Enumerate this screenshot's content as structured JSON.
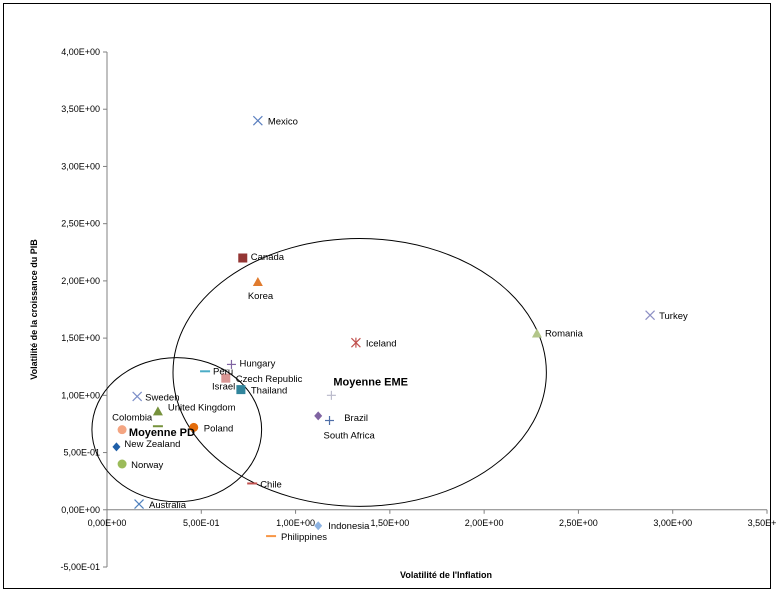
{
  "chart_data": {
    "type": "scatter",
    "title": "",
    "xlabel": "Volatilité de l'Inflation",
    "ylabel": "Volatilité de la croissance du PIB",
    "xlim": [
      0,
      3.5
    ],
    "ylim": [
      -0.5,
      4.0
    ],
    "x_ticks": [
      0,
      0.5,
      1.0,
      1.5,
      2.0,
      2.5,
      3.0,
      3.5
    ],
    "x_tick_labels": [
      "0,00E+00",
      "5,00E-01",
      "1,00E+00",
      "1,50E+00",
      "2,00E+00",
      "2,50E+00",
      "3,00E+00",
      "3,50E+00"
    ],
    "y_ticks": [
      -0.5,
      0,
      0.5,
      1.0,
      1.5,
      2.0,
      2.5,
      3.0,
      3.5,
      4.0
    ],
    "y_tick_labels": [
      "-5,00E-01",
      "0,00E+00",
      "5,00E-01",
      "1,00E+00",
      "1,50E+00",
      "2,00E+00",
      "2,50E+00",
      "3,00E+00",
      "3,50E+00",
      "4,00E+00"
    ],
    "grid": false,
    "legend": "none",
    "points": [
      {
        "label": "Mexico",
        "x": 0.8,
        "y": 3.4,
        "marker": "x",
        "color": "#5b7fbf"
      },
      {
        "label": "Canada",
        "x": 0.72,
        "y": 2.2,
        "marker": "square",
        "color": "#943634"
      },
      {
        "label": "Korea",
        "x": 0.8,
        "y": 1.99,
        "marker": "triangle",
        "color": "#e07b2e"
      },
      {
        "label": "Turkey",
        "x": 2.88,
        "y": 1.7,
        "marker": "x",
        "color": "#8c8fc4"
      },
      {
        "label": "Romania",
        "x": 2.28,
        "y": 1.54,
        "marker": "triangle",
        "color": "#b3c68a"
      },
      {
        "label": "Iceland",
        "x": 1.32,
        "y": 1.46,
        "marker": "star",
        "color": "#c0504d"
      },
      {
        "label": "Hungary",
        "x": 0.66,
        "y": 1.27,
        "marker": "plus",
        "color": "#8064a2"
      },
      {
        "label": "Peru",
        "x": 0.52,
        "y": 1.21,
        "marker": "dash",
        "color": "#4bacc6"
      },
      {
        "label": "Czech Republic",
        "x": 0.63,
        "y": 1.15,
        "marker": "square",
        "color": "#d99694"
      },
      {
        "label": "Thailand",
        "x": 0.71,
        "y": 1.05,
        "marker": "square",
        "color": "#31859c"
      },
      {
        "label": "Moyenne EME",
        "x": 1.19,
        "y": 1.0,
        "marker": "plus",
        "color": "#bbbbcc"
      },
      {
        "label": "Sweden",
        "x": 0.16,
        "y": 0.99,
        "marker": "x",
        "color": "#7b8ec8"
      },
      {
        "label": "United Kingdom",
        "x": 0.27,
        "y": 0.86,
        "marker": "triangle",
        "color": "#76923c"
      },
      {
        "label": "Brazil",
        "x": 1.12,
        "y": 0.82,
        "marker": "diamond",
        "color": "#8064a2"
      },
      {
        "label": "South Africa",
        "x": 1.18,
        "y": 0.78,
        "marker": "plus",
        "color": "#4f6fa8"
      },
      {
        "label": "Colombia",
        "x": 0.08,
        "y": 0.7,
        "marker": "circle",
        "color": "#f4a582"
      },
      {
        "label": "Moyenne PD",
        "x": 0.27,
        "y": 0.73,
        "marker": "dash",
        "color": "#76923c"
      },
      {
        "label": "Poland",
        "x": 0.46,
        "y": 0.72,
        "marker": "circle",
        "color": "#e46c0a"
      },
      {
        "label": "New Zealand",
        "x": 0.05,
        "y": 0.55,
        "marker": "diamond",
        "color": "#1f5fa8"
      },
      {
        "label": "Norway",
        "x": 0.08,
        "y": 0.4,
        "marker": "circle",
        "color": "#9bbb59"
      },
      {
        "label": "Chile",
        "x": 0.77,
        "y": 0.23,
        "marker": "dash",
        "color": "#c0504d"
      },
      {
        "label": "Australia",
        "x": 0.17,
        "y": 0.05,
        "marker": "x",
        "color": "#4f81bd"
      },
      {
        "label": "Indonesia",
        "x": 1.12,
        "y": -0.14,
        "marker": "diamond",
        "color": "#8db3e2"
      },
      {
        "label": "Philippines",
        "x": 0.87,
        "y": -0.23,
        "marker": "dash",
        "color": "#f79646"
      }
    ],
    "ellipses": [
      {
        "name": "PD",
        "cx": 0.37,
        "cy": 0.7,
        "rx": 0.45,
        "ry": 0.63
      },
      {
        "name": "EME",
        "cx": 1.34,
        "cy": 1.2,
        "rx": 0.99,
        "ry": 1.17
      }
    ]
  }
}
